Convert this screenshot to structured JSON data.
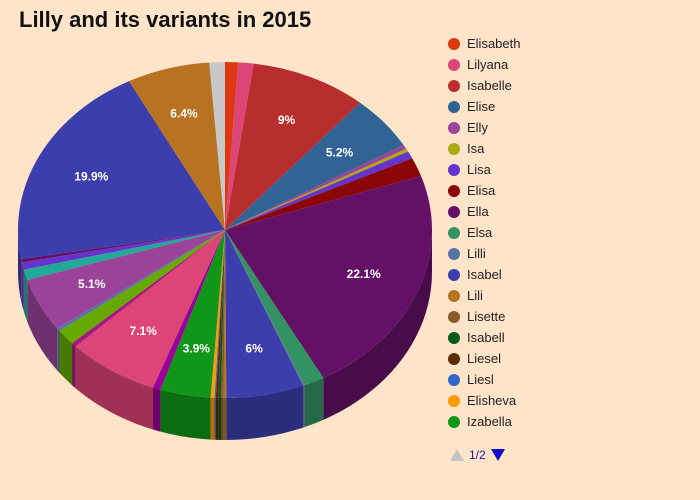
{
  "chart_data": {
    "type": "pie",
    "title": "Lilly and its variants in 2015",
    "pie_style": "3d",
    "slices": [
      {
        "name": "Elisabeth",
        "value": 1.0,
        "color": "#dc3912"
      },
      {
        "name": "Lilyana",
        "value": 1.2,
        "color": "#dd4477"
      },
      {
        "name": "Isabelle",
        "value": 9.0,
        "color": "#b82e2e",
        "label": "9%"
      },
      {
        "name": "Elise",
        "value": 5.2,
        "color": "#316395",
        "label": "5.2%"
      },
      {
        "name": "Elly",
        "value": 0.4,
        "color": "#994499"
      },
      {
        "name": "Isa",
        "value": 0.3,
        "color": "#aaaa11"
      },
      {
        "name": "Lisa",
        "value": 0.7,
        "color": "#6633cc"
      },
      {
        "name": "Elisa",
        "value": 1.8,
        "color": "#8b0707"
      },
      {
        "name": "Ella",
        "value": 22.1,
        "color": "#651067",
        "label": "22.1%"
      },
      {
        "name": "Elsa",
        "value": 1.6,
        "color": "#329262"
      },
      {
        "name": "Lilli",
        "value": 0.1,
        "color": "#5574a6"
      },
      {
        "name": "Isabel",
        "value": 6.0,
        "color": "#3b3eac",
        "label": "6%"
      },
      {
        "name": "Lili",
        "value": 0.2,
        "color": "#b77322"
      },
      {
        "name": "Lisette",
        "value": 0.2,
        "color": "#8b5a2b"
      },
      {
        "name": "Isabell",
        "value": 0.2,
        "color": "#0b5a1f"
      },
      {
        "name": "Liesel",
        "value": 0.2,
        "color": "#5f2a0a"
      },
      {
        "name": "Liesl",
        "value": 0.1,
        "color": "#3366cc"
      },
      {
        "name": "Elisheva",
        "value": 0.3,
        "color": "#ff9900"
      },
      {
        "name": "Izabella",
        "value": 3.9,
        "color": "#109618",
        "label": "3.9%"
      },
      {
        "name": "",
        "value": 0.6,
        "color": "#990099"
      },
      {
        "name": "",
        "value": 7.1,
        "color": "#dd4477",
        "label": "7.1%"
      },
      {
        "name": "",
        "value": 0.4,
        "color": "#a31a7a"
      },
      {
        "name": "",
        "value": 1.5,
        "color": "#66aa00"
      },
      {
        "name": "",
        "value": 0.3,
        "color": "#5574a6"
      },
      {
        "name": "",
        "value": 5.1,
        "color": "#994499",
        "label": "5.1%"
      },
      {
        "name": "",
        "value": 1.0,
        "color": "#22aa99"
      },
      {
        "name": "",
        "value": 0.7,
        "color": "#6633cc"
      },
      {
        "name": "",
        "value": 0.3,
        "color": "#651067"
      },
      {
        "name": "",
        "value": 19.9,
        "color": "#3b3eac",
        "label": "19.9%"
      },
      {
        "name": "",
        "value": 6.4,
        "color": "#b77322",
        "label": "6.4%"
      },
      {
        "name": "",
        "value": 1.2,
        "color": "#c8c8c8"
      }
    ],
    "legend_position": "right"
  },
  "legend": {
    "items": [
      {
        "label": "Elisabeth",
        "color": "#dc3912"
      },
      {
        "label": "Lilyana",
        "color": "#dd4477"
      },
      {
        "label": "Isabelle",
        "color": "#b82e2e"
      },
      {
        "label": "Elise",
        "color": "#316395"
      },
      {
        "label": "Elly",
        "color": "#994499"
      },
      {
        "label": "Isa",
        "color": "#aaaa11"
      },
      {
        "label": "Lisa",
        "color": "#6633cc"
      },
      {
        "label": "Elisa",
        "color": "#8b0707"
      },
      {
        "label": "Ella",
        "color": "#651067"
      },
      {
        "label": "Elsa",
        "color": "#329262"
      },
      {
        "label": "Lilli",
        "color": "#5574a6"
      },
      {
        "label": "Isabel",
        "color": "#3b3eac"
      },
      {
        "label": "Lili",
        "color": "#b77322"
      },
      {
        "label": "Lisette",
        "color": "#8b5a2b"
      },
      {
        "label": "Isabell",
        "color": "#0b5a1f"
      },
      {
        "label": "Liesel",
        "color": "#5f2a0a"
      },
      {
        "label": "Liesl",
        "color": "#3366cc"
      },
      {
        "label": "Elisheva",
        "color": "#ff9900"
      },
      {
        "label": "Izabella",
        "color": "#109618"
      }
    ],
    "pager": {
      "text": "1/2",
      "prev_icon": "triangle-up-icon",
      "next_icon": "triangle-down-icon"
    }
  },
  "background_color": "#fee4c9"
}
